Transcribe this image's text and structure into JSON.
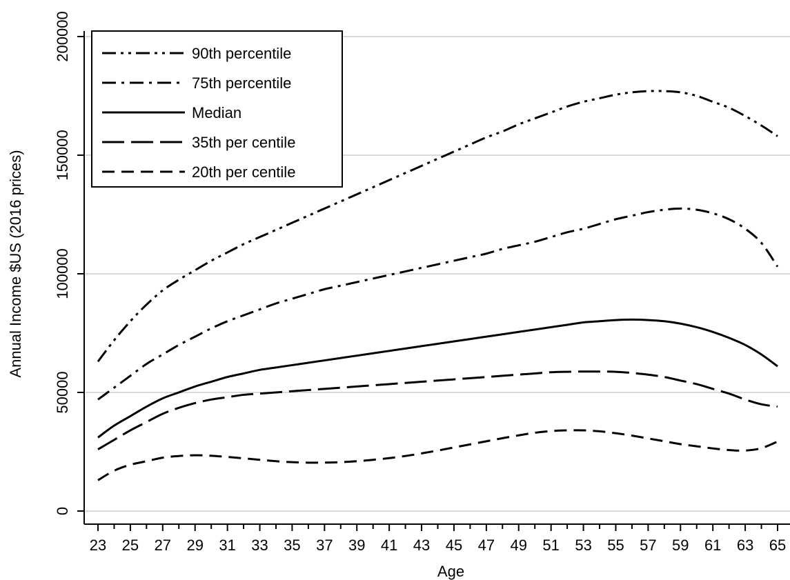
{
  "chart_data": {
    "type": "line",
    "xlabel": "Age",
    "ylabel": "Annual Income $US (2016 prices)",
    "xlim": [
      23,
      65
    ],
    "ylim": [
      0,
      200000
    ],
    "x_ticks": [
      "23",
      "25",
      "27",
      "29",
      "31",
      "33",
      "35",
      "37",
      "39",
      "41",
      "43",
      "45",
      "47",
      "49",
      "51",
      "53",
      "55",
      "57",
      "59",
      "61",
      "63",
      "65"
    ],
    "y_ticks": [
      "0",
      "50000",
      "100000",
      "150000",
      "200000"
    ],
    "grid": true,
    "legend_position": "top-left",
    "x": [
      23,
      24,
      25,
      26,
      27,
      28,
      29,
      30,
      31,
      32,
      33,
      34,
      35,
      36,
      37,
      38,
      39,
      40,
      41,
      42,
      43,
      44,
      45,
      46,
      47,
      48,
      49,
      50,
      51,
      52,
      53,
      54,
      55,
      56,
      57,
      58,
      59,
      60,
      61,
      62,
      63,
      64,
      65
    ],
    "series": [
      {
        "name": "90th percentile",
        "dash": "dashdotdot",
        "values": [
          63000,
          72000,
          80000,
          87000,
          93000,
          97500,
          101500,
          105500,
          109000,
          112500,
          115500,
          118500,
          121500,
          124500,
          127500,
          130500,
          133500,
          136500,
          139500,
          142500,
          145500,
          148500,
          151500,
          154500,
          157500,
          160000,
          163000,
          165500,
          168000,
          170500,
          172500,
          174000,
          175500,
          176500,
          177000,
          177000,
          176500,
          175000,
          172500,
          170000,
          166500,
          162500,
          158000
        ]
      },
      {
        "name": "75th percentile",
        "dash": "dashdot",
        "values": [
          47000,
          52000,
          57000,
          62000,
          66000,
          70000,
          73500,
          77000,
          80000,
          82500,
          85000,
          87500,
          89500,
          91500,
          93500,
          95000,
          96500,
          98000,
          99500,
          101000,
          102500,
          104000,
          105500,
          107000,
          108500,
          110500,
          112000,
          113500,
          115500,
          117500,
          119000,
          121000,
          123000,
          124500,
          126000,
          127000,
          127500,
          127000,
          125500,
          123000,
          119000,
          113000,
          103000
        ]
      },
      {
        "name": "Median",
        "dash": "solid",
        "values": [
          31000,
          36000,
          40000,
          44000,
          47500,
          50000,
          52500,
          54500,
          56500,
          58000,
          59500,
          60500,
          61500,
          62500,
          63500,
          64500,
          65500,
          66500,
          67500,
          68500,
          69500,
          70500,
          71500,
          72500,
          73500,
          74500,
          75500,
          76500,
          77500,
          78500,
          79500,
          80000,
          80500,
          80700,
          80500,
          80000,
          79000,
          77500,
          75500,
          73000,
          70000,
          66000,
          61000
        ]
      },
      {
        "name": "35th per centile",
        "dash": "longdash",
        "values": [
          26000,
          30000,
          34000,
          37500,
          41000,
          43500,
          45500,
          47000,
          48000,
          49000,
          49500,
          50000,
          50500,
          51000,
          51500,
          52000,
          52500,
          53000,
          53500,
          54000,
          54500,
          55000,
          55500,
          56000,
          56500,
          57000,
          57500,
          58000,
          58500,
          58700,
          58800,
          58800,
          58700,
          58200,
          57500,
          56500,
          55000,
          53500,
          51500,
          49500,
          47000,
          45000,
          44000
        ]
      },
      {
        "name": "20th per centile",
        "dash": "dash",
        "values": [
          13000,
          17000,
          19500,
          21000,
          22500,
          23200,
          23500,
          23300,
          22800,
          22200,
          21600,
          21000,
          20600,
          20400,
          20400,
          20600,
          21000,
          21600,
          22300,
          23200,
          24300,
          25500,
          26800,
          28100,
          29400,
          30700,
          31900,
          33000,
          33700,
          34000,
          34000,
          33600,
          32800,
          31800,
          30600,
          29400,
          28200,
          27300,
          26400,
          25700,
          25500,
          26500,
          29300
        ]
      }
    ]
  }
}
